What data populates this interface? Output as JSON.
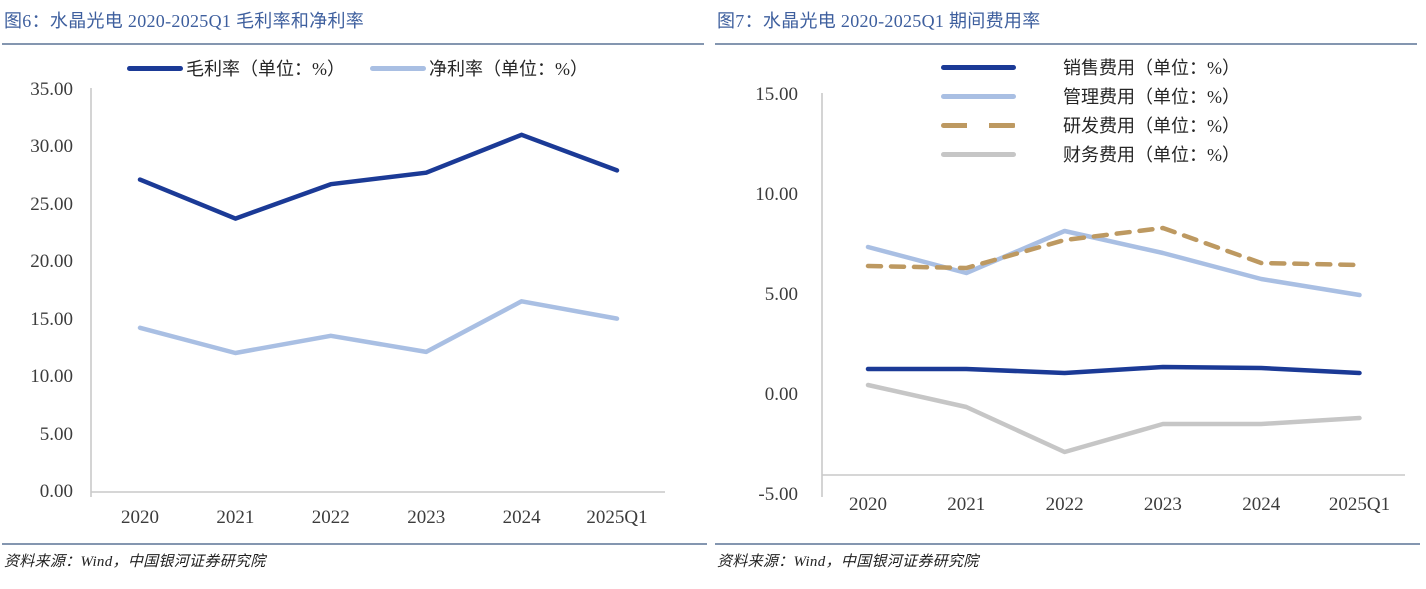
{
  "chart_data": [
    {
      "id": "figure-6",
      "type": "line",
      "title": "图6：水晶光电 2020-2025Q1 毛利率和净利率",
      "source": "资料来源：Wind，中国银河证券研究院",
      "categories": [
        "2020",
        "2021",
        "2022",
        "2023",
        "2024",
        "2025Q1"
      ],
      "series": [
        {
          "key": "gross-margin",
          "name": "毛利率（单位：%）",
          "color": "#1B3A96",
          "style": "solid",
          "values": [
            27.2,
            23.8,
            26.8,
            27.8,
            31.1,
            28.0
          ]
        },
        {
          "key": "net-margin",
          "name": "净利率（单位：%）",
          "color": "#A9BFE3",
          "style": "solid",
          "values": [
            14.3,
            12.1,
            13.6,
            12.2,
            16.6,
            15.1
          ]
        }
      ],
      "y_ticks": [
        "35.00",
        "30.00",
        "25.00",
        "20.00",
        "15.00",
        "10.00",
        "5.00",
        "0.00"
      ],
      "ylim": [
        0,
        35
      ],
      "grid": false,
      "legend_position": "top-center"
    },
    {
      "id": "figure-7",
      "type": "line",
      "title": "图7：水晶光电 2020-2025Q1 期间费用率",
      "source": "资料来源：Wind，中国银河证券研究院",
      "categories": [
        "2020",
        "2021",
        "2022",
        "2023",
        "2024",
        "2025Q1"
      ],
      "series": [
        {
          "key": "selling-expense-ratio",
          "name": "销售费用（单位：%）",
          "color": "#1B3A96",
          "style": "solid",
          "values": [
            1.3,
            1.3,
            1.1,
            1.4,
            1.35,
            1.1
          ]
        },
        {
          "key": "admin-expense-ratio",
          "name": "管理费用（单位：%）",
          "color": "#A9BFE3",
          "style": "solid",
          "values": [
            7.4,
            6.1,
            8.2,
            7.1,
            5.8,
            5.0
          ]
        },
        {
          "key": "rd-expense-ratio",
          "name": "研发费用（单位：%）",
          "color": "#BD9961",
          "style": "dashed",
          "values": [
            6.45,
            6.35,
            7.75,
            8.35,
            6.6,
            6.5
          ]
        },
        {
          "key": "finance-expense-ratio",
          "name": "财务费用（单位：%）",
          "color": "#C6C6C6",
          "style": "solid",
          "values": [
            0.5,
            -0.6,
            -2.85,
            -1.45,
            -1.45,
            -1.15
          ]
        }
      ],
      "y_ticks": [
        "15.00",
        "10.00",
        "5.00",
        "0.00",
        "-5.00"
      ],
      "ylim": [
        -5,
        15
      ],
      "grid": false,
      "legend_position": "top-right"
    }
  ],
  "colors": {
    "background": "#FFFFFF",
    "title_text": "#3E5F9E",
    "rule": "#8496B0",
    "axis_line": "#C9C9C9",
    "tick_text": "#3C3C3C",
    "legend_text": "#262626",
    "source_text": "#1F1F1F"
  }
}
